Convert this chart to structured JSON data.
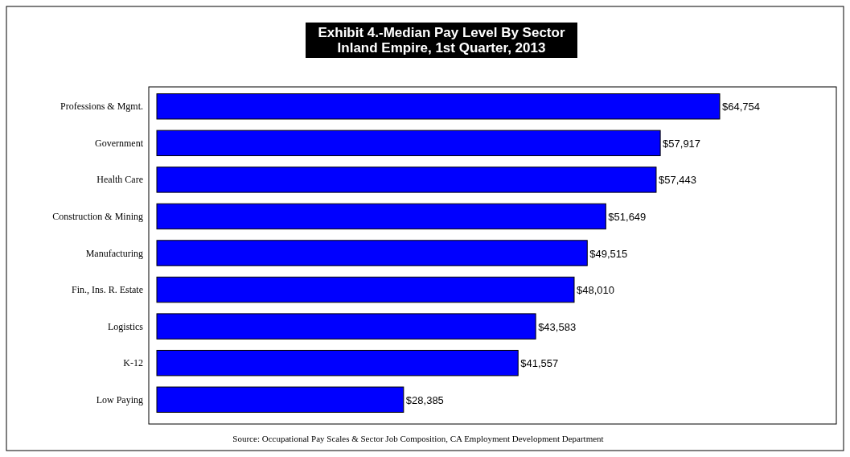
{
  "chart_data": {
    "type": "bar",
    "orientation": "horizontal",
    "title": "Exhibit 4.-Median Pay Level By Sector\nInland Empire, 1st Quarter, 2013",
    "categories": [
      "Professions & Mgmt.",
      "Government",
      "Health Care",
      "Construction & Mining",
      "Manufacturing",
      "Fin., Ins. R. Estate",
      "Logistics",
      "K-12",
      "Low Paying"
    ],
    "values": [
      64754,
      57917,
      57443,
      51649,
      49515,
      48010,
      43583,
      41557,
      28385
    ],
    "value_labels": [
      "$64,754",
      "$57,917",
      "$57,443",
      "$51,649",
      "$49,515",
      "$48,010",
      "$43,583",
      "$41,557",
      "$28,385"
    ],
    "color": "#0000ff",
    "annotations": [
      "Source:  Occupational Pay Scales & Sector Job Composition, CA Employment Development Department"
    ]
  }
}
